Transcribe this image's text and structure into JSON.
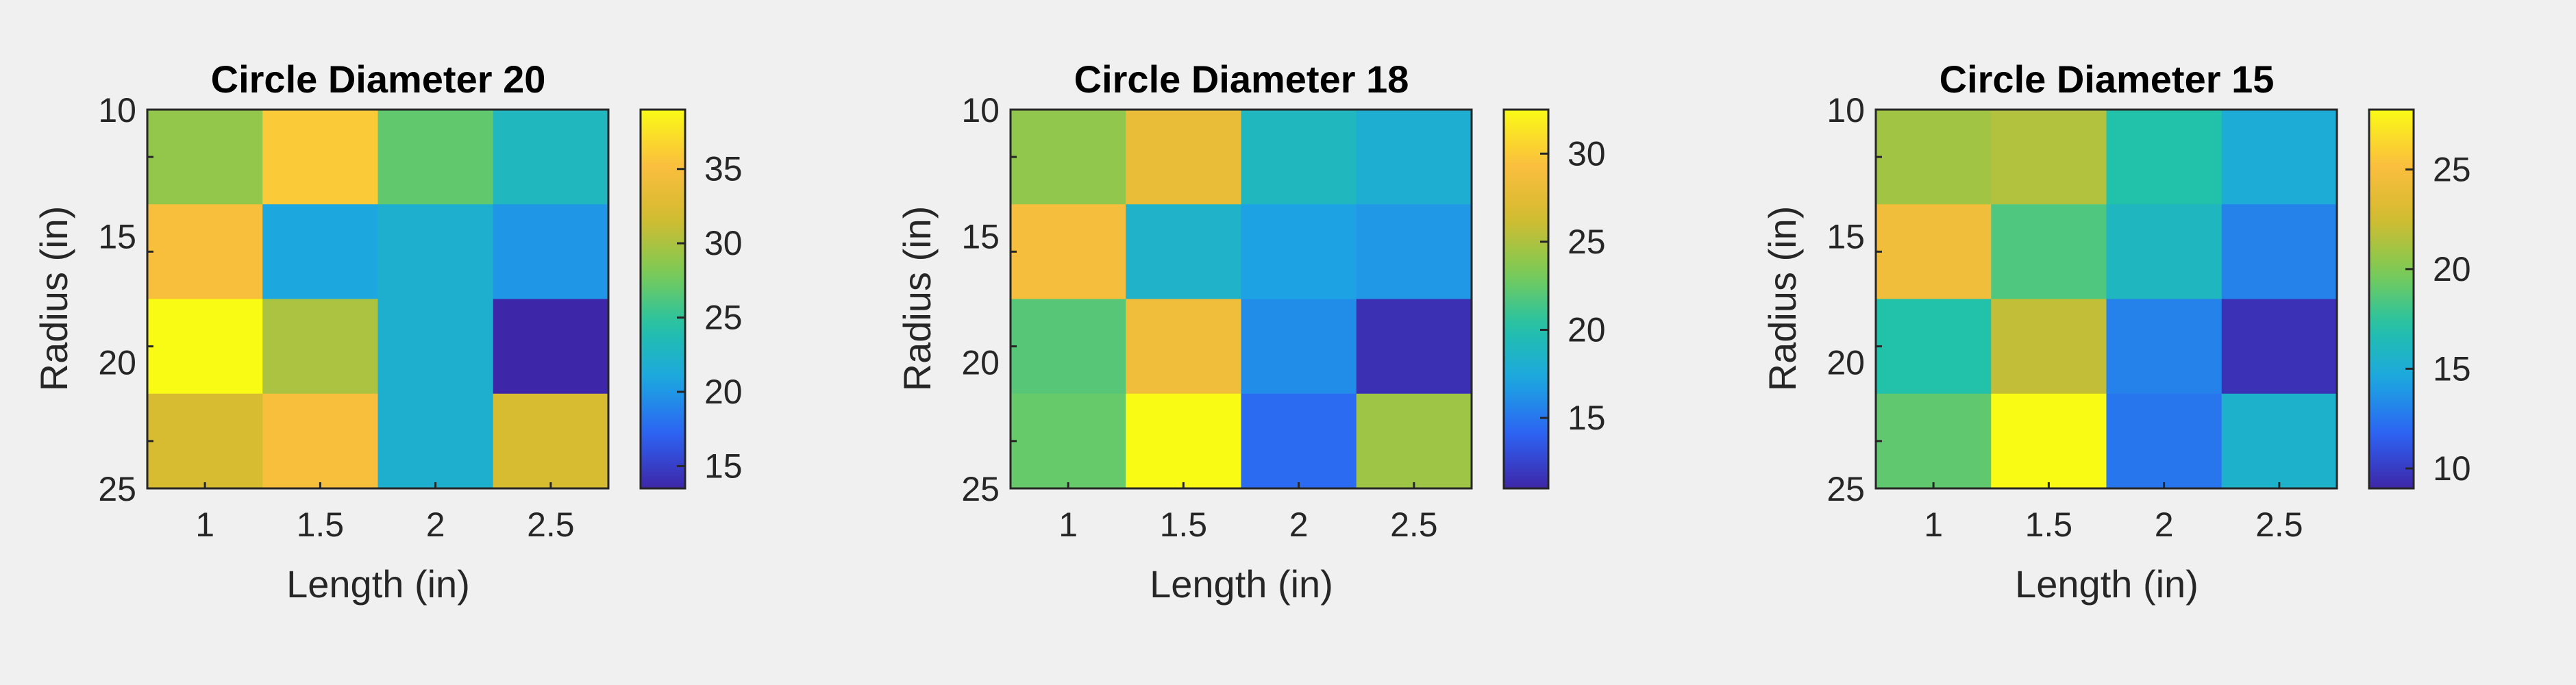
{
  "chart_data": [
    {
      "type": "heatmap",
      "title": "Circle Diameter 20",
      "xlabel": "Length (in)",
      "ylabel": "Radius (in)",
      "x": [
        "1",
        "1.5",
        "2",
        "2.5"
      ],
      "y": [
        "10",
        "15",
        "20",
        "25"
      ],
      "values": [
        [
          29,
          36,
          27,
          23
        ],
        [
          35,
          21,
          22,
          20
        ],
        [
          39,
          30,
          22,
          13.5
        ],
        [
          32,
          35,
          22,
          32
        ]
      ],
      "colorbar": {
        "range": [
          13.5,
          39
        ],
        "ticks": [
          15,
          20,
          25,
          30,
          35
        ]
      }
    },
    {
      "type": "heatmap",
      "title": "Circle Diameter 18",
      "xlabel": "Length (in)",
      "ylabel": "Radius (in)",
      "x": [
        "1",
        "1.5",
        "2",
        "2.5"
      ],
      "y": [
        "10",
        "15",
        "20",
        "25"
      ],
      "values": [
        [
          24,
          28,
          19,
          18
        ],
        [
          29,
          18.5,
          17,
          16.5
        ],
        [
          22,
          28.5,
          16,
          11.5
        ],
        [
          22.5,
          32.5,
          14.5,
          24.5
        ]
      ],
      "colorbar": {
        "range": [
          11,
          32.5
        ],
        "ticks": [
          15,
          20,
          25,
          30
        ]
      }
    },
    {
      "type": "heatmap",
      "title": "Circle Diameter 15",
      "xlabel": "Length (in)",
      "ylabel": "Radius (in)",
      "x": [
        "1",
        "1.5",
        "2",
        "2.5"
      ],
      "y": [
        "10",
        "15",
        "20",
        "25"
      ],
      "values": [
        [
          21,
          21.5,
          17,
          15
        ],
        [
          24.5,
          18.5,
          16,
          13
        ],
        [
          17,
          22,
          13,
          9.5
        ],
        [
          19,
          28,
          12.5,
          15.5
        ]
      ],
      "colorbar": {
        "range": [
          9,
          28
        ],
        "ticks": [
          10,
          15,
          20,
          25
        ]
      }
    }
  ],
  "colormap": [
    "#3e26a8",
    "#2d62f3",
    "#1ca6e2",
    "#22c2a7",
    "#7dcb55",
    "#d4bb2f",
    "#fcbf3f",
    "#f9fb15"
  ]
}
